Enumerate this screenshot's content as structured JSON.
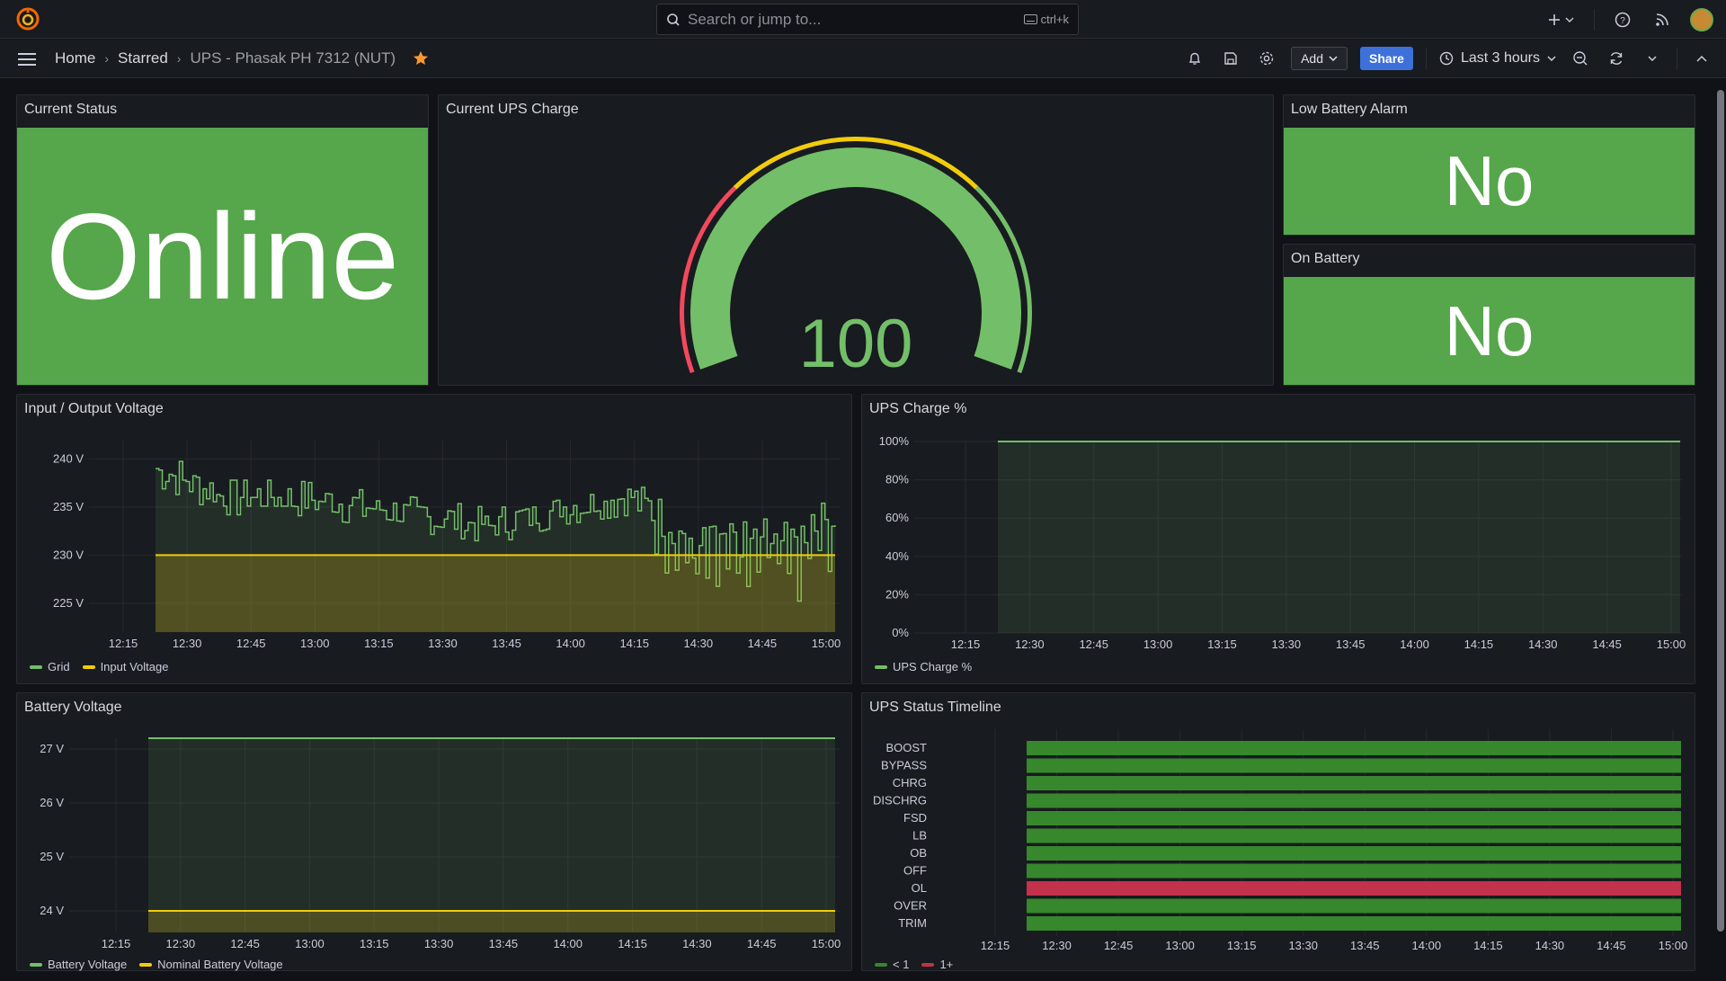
{
  "topbar": {
    "search_placeholder": "Search or jump to...",
    "search_shortcut": "ctrl+k",
    "icons": [
      "grafana-logo-icon",
      "search-icon",
      "keyboard-icon",
      "plus-icon",
      "help-icon",
      "news-icon",
      "avatar"
    ]
  },
  "navbar": {
    "crumb_home": "Home",
    "crumb_starred": "Starred",
    "crumb_current": "UPS - Phasak PH 7312 (NUT)",
    "add_label": "Add",
    "share_label": "Share",
    "time_range": "Last 3 hours"
  },
  "panels": {
    "current_status": {
      "title": "Current Status",
      "value": "Online"
    },
    "ups_charge_gauge": {
      "title": "Current UPS Charge",
      "value": "100",
      "min": 0,
      "max": 100
    },
    "low_battery": {
      "title": "Low Battery Alarm",
      "value": "No"
    },
    "on_battery": {
      "title": "On Battery",
      "value": "No"
    },
    "io_voltage": {
      "title": "Input / Output Voltage",
      "yticks": [
        "240 V",
        "235 V",
        "230 V",
        "225 V"
      ],
      "xticks": [
        "12:15",
        "12:30",
        "12:45",
        "13:00",
        "13:15",
        "13:30",
        "13:45",
        "14:00",
        "14:15",
        "14:30",
        "14:45",
        "15:00"
      ],
      "legend": [
        "Grid",
        "Input Voltage"
      ]
    },
    "ups_charge_pct": {
      "title": "UPS Charge %",
      "yticks": [
        "100%",
        "80%",
        "60%",
        "40%",
        "20%",
        "0%"
      ],
      "xticks": [
        "12:15",
        "12:30",
        "12:45",
        "13:00",
        "13:15",
        "13:30",
        "13:45",
        "14:00",
        "14:15",
        "14:30",
        "14:45",
        "15:00"
      ],
      "legend": [
        "UPS Charge %"
      ]
    },
    "battery_voltage": {
      "title": "Battery Voltage",
      "yticks": [
        "27 V",
        "26 V",
        "25 V",
        "24 V"
      ],
      "xticks": [
        "12:15",
        "12:30",
        "12:45",
        "13:00",
        "13:15",
        "13:30",
        "13:45",
        "14:00",
        "14:15",
        "14:30",
        "14:45",
        "15:00"
      ],
      "legend": [
        "Battery Voltage",
        "Nominal Battery Voltage"
      ]
    },
    "status_timeline": {
      "title": "UPS Status Timeline",
      "rows": [
        "BOOST",
        "BYPASS",
        "CHRG",
        "DISCHRG",
        "FSD",
        "LB",
        "OB",
        "OFF",
        "OL",
        "OVER",
        "TRIM"
      ],
      "xticks": [
        "12:15",
        "12:30",
        "12:45",
        "13:00",
        "13:15",
        "13:30",
        "13:45",
        "14:00",
        "14:15",
        "14:30",
        "14:45",
        "15:00"
      ],
      "legend": [
        "< 1",
        "1+"
      ]
    }
  },
  "colors": {
    "green": "#56a64b",
    "series_green": "#73bf69",
    "yellow": "#f2cc0c",
    "red": "#f2495c",
    "timeline_green": "#37872d",
    "timeline_red": "#c4314b",
    "accent_blue": "#3d71d9",
    "star_orange": "#ff9830"
  },
  "chart_data": [
    {
      "type": "line",
      "title": "Input / Output Voltage",
      "x": [
        "12:15",
        "12:30",
        "12:45",
        "13:00",
        "13:15",
        "13:30",
        "13:45",
        "14:00",
        "14:15",
        "14:30",
        "14:45",
        "15:00"
      ],
      "ylim": [
        222,
        242
      ],
      "series": [
        {
          "name": "Grid",
          "values": [
            null,
            239,
            236,
            236,
            235,
            234,
            233,
            235,
            236,
            231,
            232,
            234
          ]
        },
        {
          "name": "Input Voltage",
          "values": [
            null,
            230,
            230,
            230,
            230,
            230,
            230,
            230,
            230,
            230,
            230,
            230
          ]
        }
      ]
    },
    {
      "type": "area",
      "title": "UPS Charge %",
      "x": [
        "12:15",
        "12:30",
        "12:45",
        "13:00",
        "13:15",
        "13:30",
        "13:45",
        "14:00",
        "14:15",
        "14:30",
        "14:45",
        "15:00"
      ],
      "ylim": [
        0,
        100
      ],
      "series": [
        {
          "name": "UPS Charge %",
          "values": [
            null,
            100,
            100,
            100,
            100,
            100,
            100,
            100,
            100,
            100,
            100,
            100
          ]
        }
      ]
    },
    {
      "type": "line",
      "title": "Battery Voltage",
      "x": [
        "12:15",
        "12:30",
        "12:45",
        "13:00",
        "13:15",
        "13:30",
        "13:45",
        "14:00",
        "14:15",
        "14:30",
        "14:45",
        "15:00"
      ],
      "ylim": [
        23.6,
        27.2
      ],
      "series": [
        {
          "name": "Battery Voltage",
          "values": [
            null,
            27.2,
            27.2,
            27.2,
            27.2,
            27.2,
            27.2,
            27.2,
            27.2,
            27.2,
            27.2,
            27.2
          ]
        },
        {
          "name": "Nominal Battery Voltage",
          "values": [
            null,
            24,
            24,
            24,
            24,
            24,
            24,
            24,
            24,
            24,
            24,
            24
          ]
        }
      ]
    },
    {
      "type": "heatmap",
      "title": "UPS Status Timeline",
      "categories": [
        "BOOST",
        "BYPASS",
        "CHRG",
        "DISCHRG",
        "FSD",
        "LB",
        "OB",
        "OFF",
        "OL",
        "OVER",
        "TRIM"
      ],
      "values": [
        0,
        0,
        0,
        0,
        0,
        0,
        0,
        0,
        1,
        0,
        0
      ]
    }
  ]
}
